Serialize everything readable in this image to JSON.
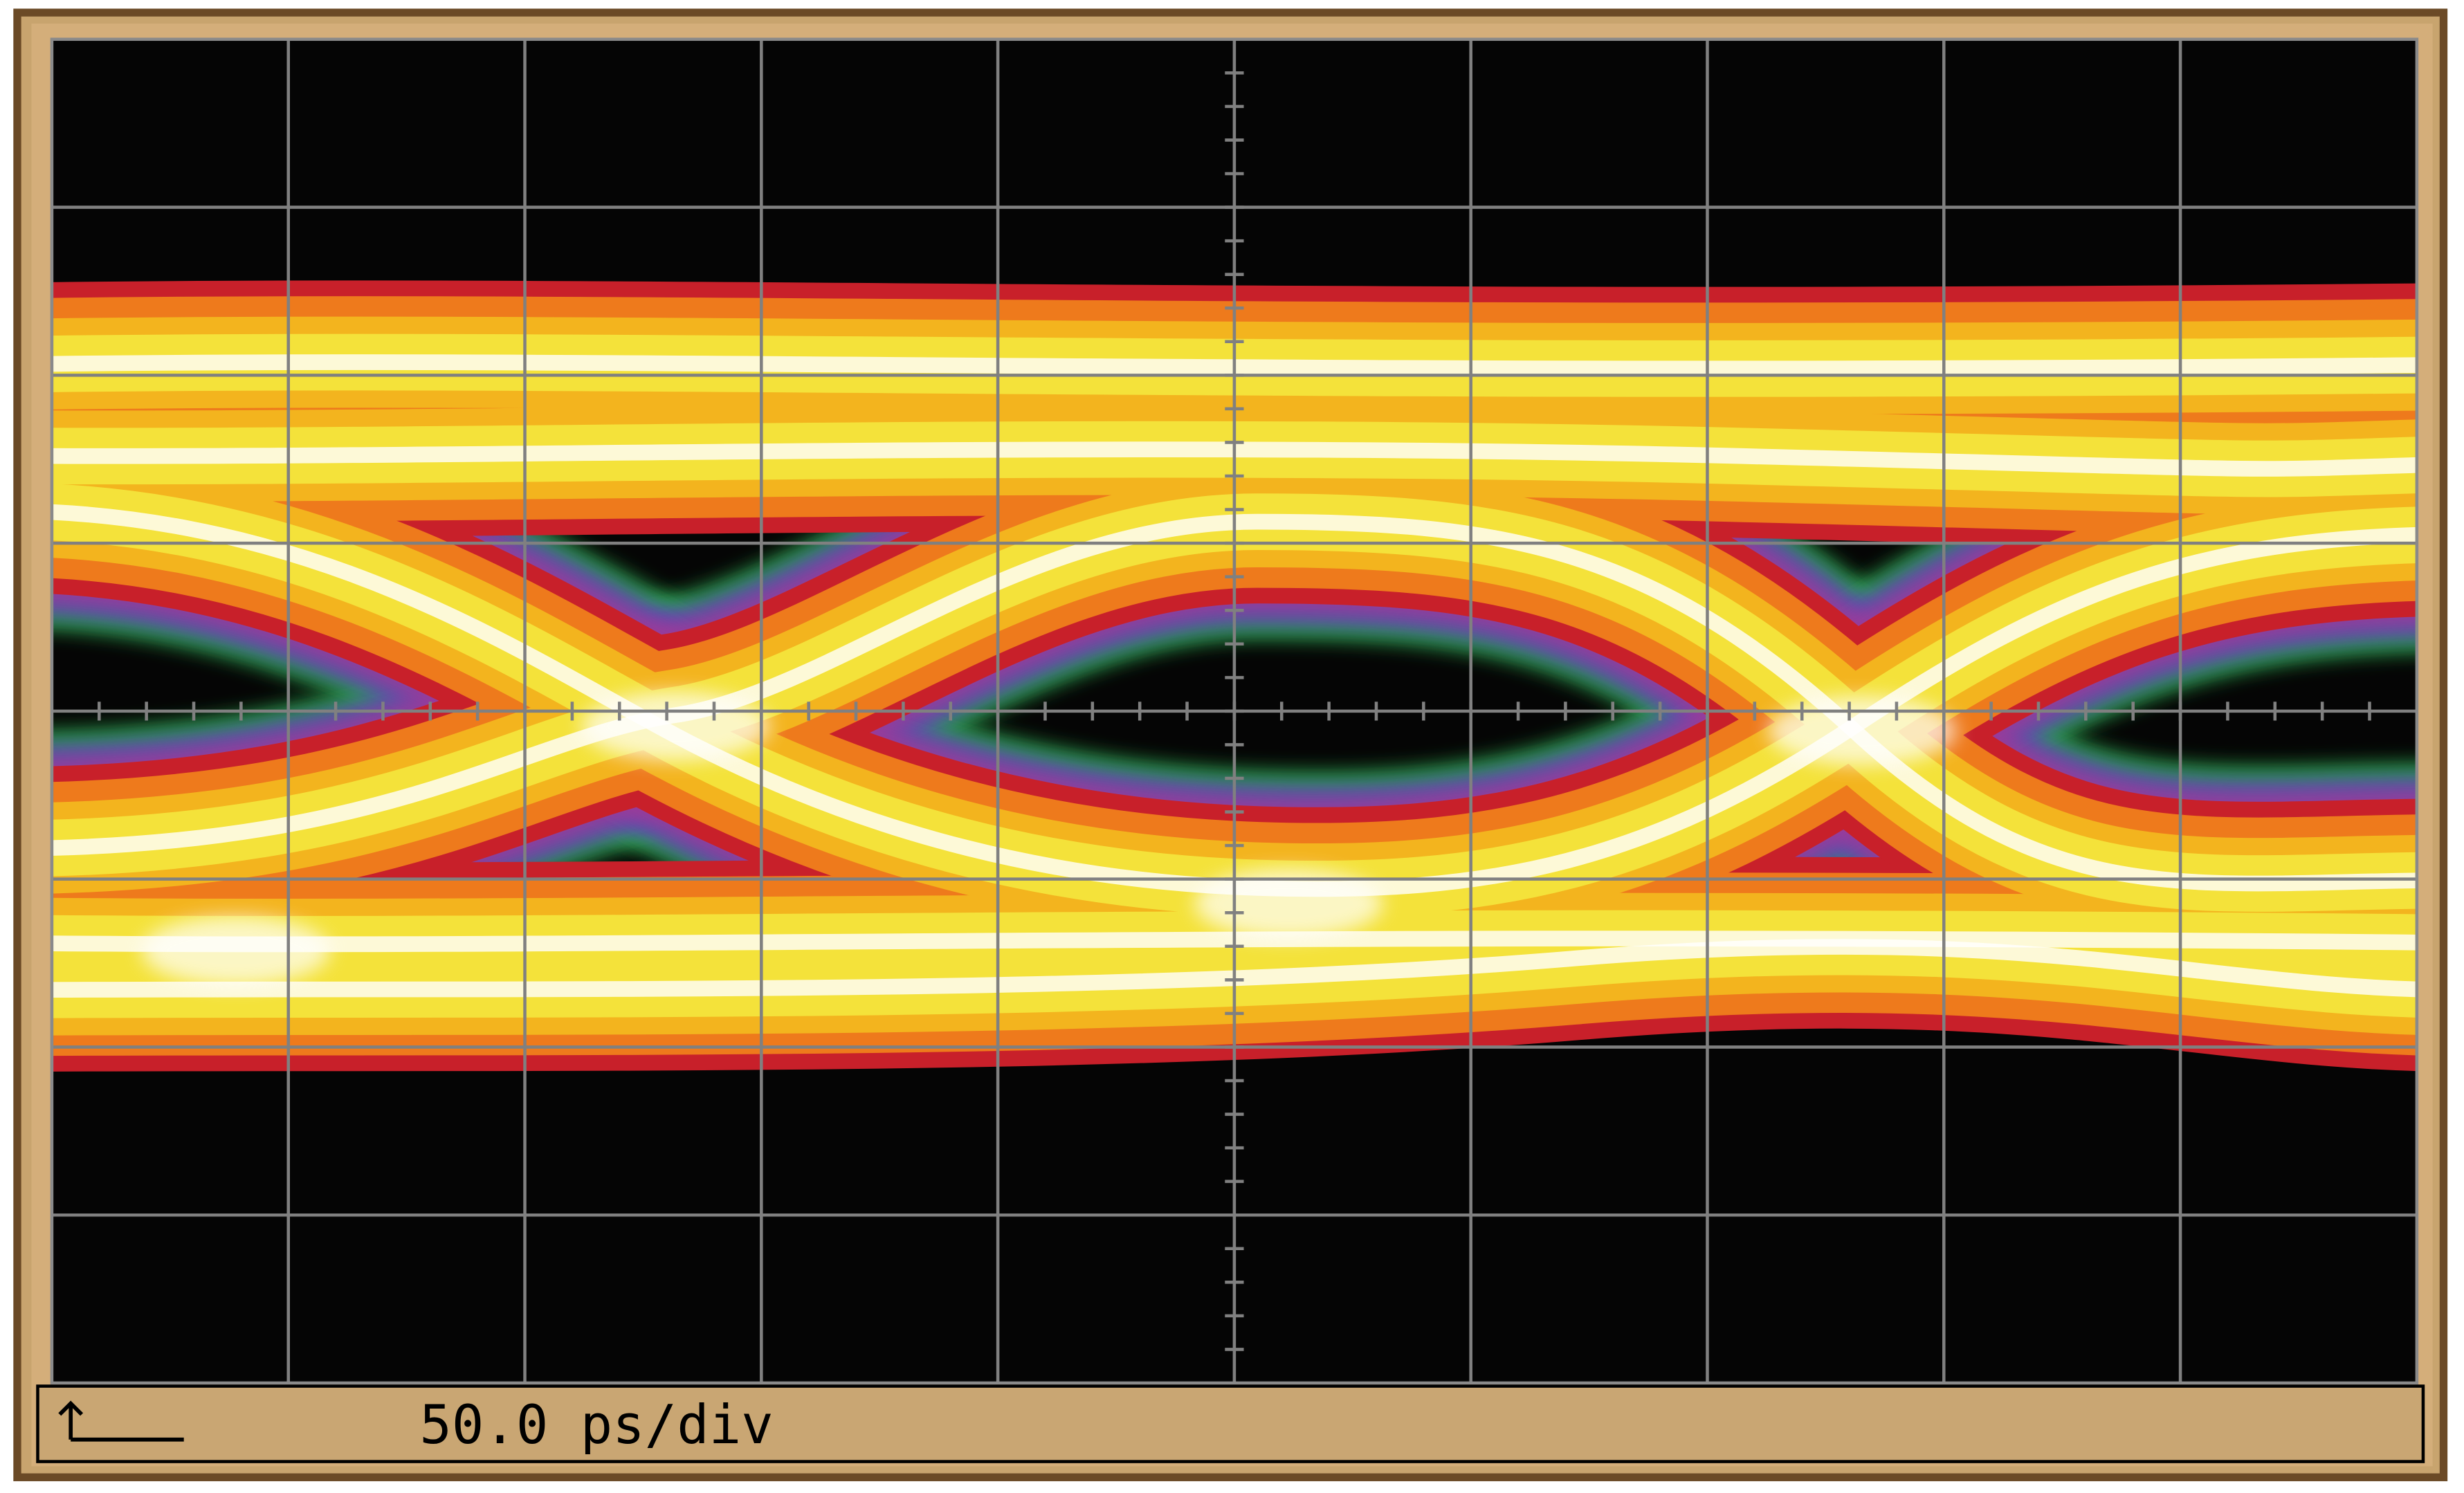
{
  "status": {
    "timebase": "50.0 ps/div"
  }
}
